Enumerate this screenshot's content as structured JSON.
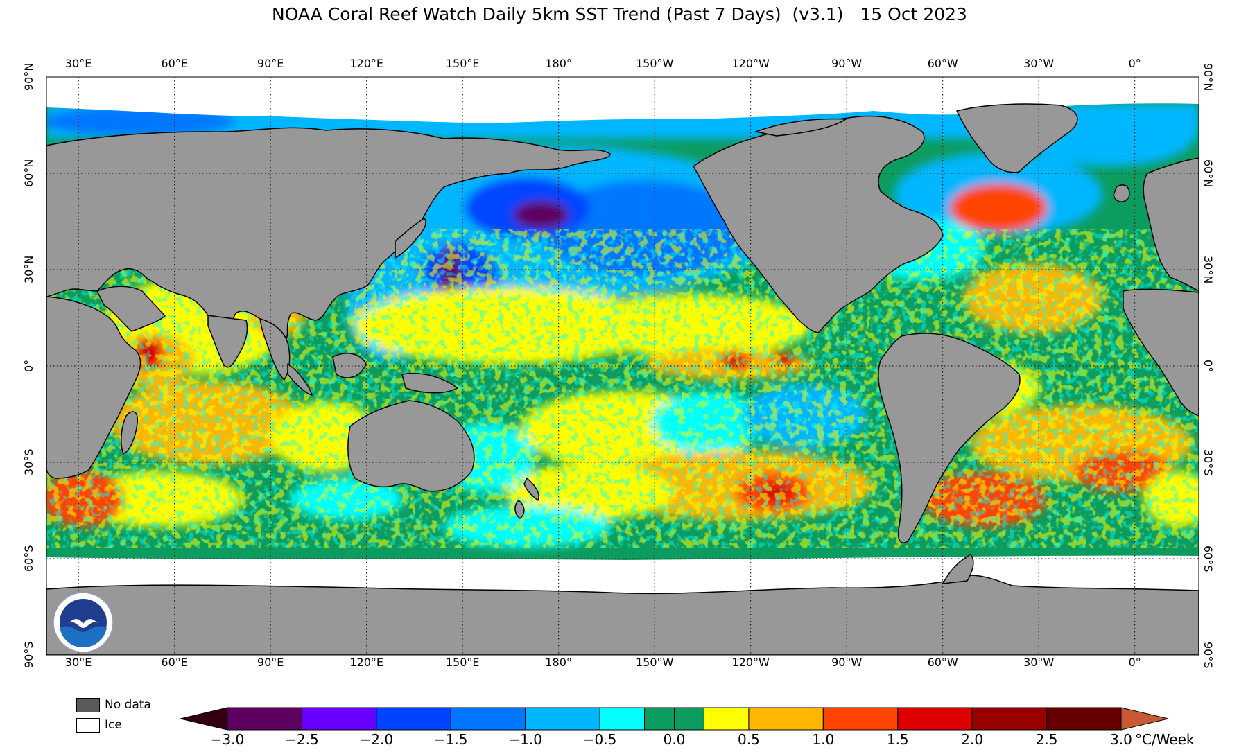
{
  "title": "NOAA Coral Reef Watch Daily 5km SST Trend (Past 7 Days)  (v3.1)   15 Oct 2023",
  "map": {
    "lon_labels": [
      "30°E",
      "60°E",
      "90°E",
      "120°E",
      "150°E",
      "180°",
      "150°W",
      "120°W",
      "90°W",
      "60°W",
      "30°W",
      "0°"
    ],
    "lon_values": [
      30,
      60,
      90,
      120,
      150,
      180,
      -150,
      -120,
      -90,
      -60,
      -30,
      0
    ],
    "lat_labels": [
      "90°N",
      "60°N",
      "30°N",
      "0°",
      "30°S",
      "60°S",
      "90°S"
    ],
    "lat_values": [
      90,
      60,
      30,
      0,
      -30,
      -60,
      -90
    ],
    "lon_range_east": [
      20,
      380
    ],
    "lat_range": [
      -90,
      90
    ],
    "colors": {
      "land": "#989898",
      "ice": "#ffffff",
      "no_data": "#5a5a5a"
    }
  },
  "legend": {
    "no_data_label": "No data",
    "ice_label": "Ice"
  },
  "colorbar": {
    "unit": "°C/Week",
    "tick_labels": [
      "−3.0",
      "−2.5",
      "−2.0",
      "−1.5",
      "−1.0",
      "−0.5",
      "0.0",
      "0.5",
      "1.0",
      "1.5",
      "2.0",
      "2.5",
      "3.0"
    ],
    "tick_values": [
      -3.0,
      -2.5,
      -2.0,
      -1.5,
      -1.0,
      -0.5,
      0.0,
      0.5,
      1.0,
      1.5,
      2.0,
      2.5,
      3.0
    ],
    "range": [
      -3.0,
      3.0
    ],
    "bins": [
      {
        "from": -3.0,
        "to": -2.5,
        "color": "#5e0060"
      },
      {
        "from": -2.5,
        "to": -2.0,
        "color": "#6800ff"
      },
      {
        "from": -2.0,
        "to": -1.5,
        "color": "#0044ff"
      },
      {
        "from": -1.5,
        "to": -1.0,
        "color": "#0077ff"
      },
      {
        "from": -1.0,
        "to": -0.5,
        "color": "#00b6ff"
      },
      {
        "from": -0.5,
        "to": -0.2,
        "color": "#00ffff"
      },
      {
        "from": -0.2,
        "to": 0.0,
        "color": "#0c9c60"
      },
      {
        "from": 0.0,
        "to": 0.2,
        "color": "#0c9c60"
      },
      {
        "from": 0.2,
        "to": 0.5,
        "color": "#ffff00"
      },
      {
        "from": 0.5,
        "to": 1.0,
        "color": "#ffb600"
      },
      {
        "from": 1.0,
        "to": 1.5,
        "color": "#ff4400"
      },
      {
        "from": 1.5,
        "to": 2.0,
        "color": "#dd0000"
      },
      {
        "from": 2.0,
        "to": 2.5,
        "color": "#990000"
      },
      {
        "from": 2.5,
        "to": 3.0,
        "color": "#660000"
      }
    ],
    "under_color": "#330010",
    "over_color": "#c85a33"
  }
}
